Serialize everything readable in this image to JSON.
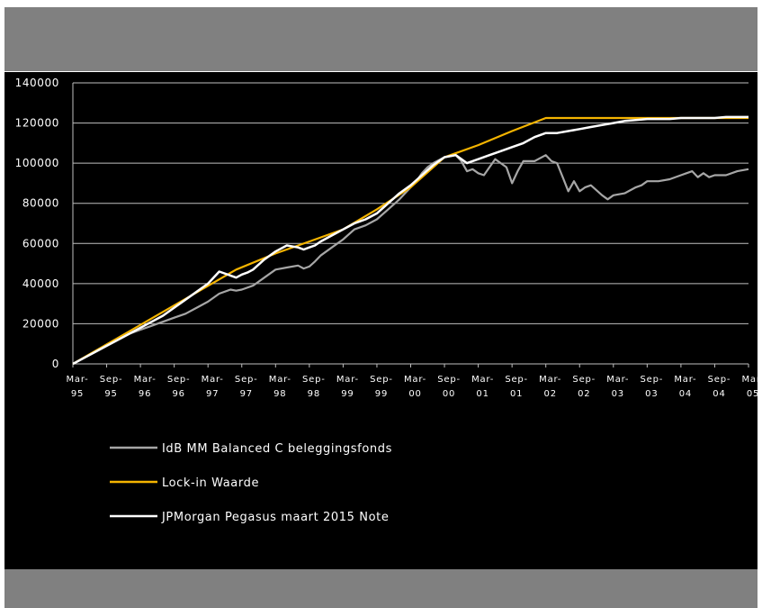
{
  "chart_data": {
    "type": "line",
    "title": "",
    "xlabel": "",
    "ylabel": "",
    "ylim": [
      0,
      140000
    ],
    "y_ticks": [
      "0",
      "20000",
      "40000",
      "60000",
      "80000",
      "100000",
      "120000",
      "140000"
    ],
    "x_ticks": [
      {
        "month": "Mar-",
        "year": "95"
      },
      {
        "month": "Sep-",
        "year": "95"
      },
      {
        "month": "Mar-",
        "year": "96"
      },
      {
        "month": "Sep-",
        "year": "96"
      },
      {
        "month": "Mar-",
        "year": "97"
      },
      {
        "month": "Sep-",
        "year": "97"
      },
      {
        "month": "Mar-",
        "year": "98"
      },
      {
        "month": "Sep-",
        "year": "98"
      },
      {
        "month": "Mar-",
        "year": "99"
      },
      {
        "month": "Sep-",
        "year": "99"
      },
      {
        "month": "Mar-",
        "year": "00"
      },
      {
        "month": "Sep-",
        "year": "00"
      },
      {
        "month": "Mar-",
        "year": "01"
      },
      {
        "month": "Sep-",
        "year": "01"
      },
      {
        "month": "Mar-",
        "year": "02"
      },
      {
        "month": "Sep-",
        "year": "02"
      },
      {
        "month": "Mar-",
        "year": "03"
      },
      {
        "month": "Sep-",
        "year": "03"
      },
      {
        "month": "Mar-",
        "year": "04"
      },
      {
        "month": "Sep-",
        "year": "04"
      },
      {
        "month": "Mar-",
        "year": "05"
      }
    ],
    "grid": "horizontal",
    "legend_position": "bottom-left",
    "series": [
      {
        "name": "IdB MM Balanced C beleggingsfonds",
        "color": "#a6a6a6",
        "x": [
          "1995-03",
          "1995-05",
          "1995-07",
          "1995-09",
          "1995-11",
          "1996-01",
          "1996-03",
          "1996-05",
          "1996-07",
          "1996-09",
          "1996-11",
          "1997-01",
          "1997-03",
          "1997-05",
          "1997-07",
          "1997-08",
          "1997-09",
          "1997-11",
          "1998-01",
          "1998-03",
          "1998-05",
          "1998-07",
          "1998-08",
          "1998-09",
          "1998-10",
          "1998-11",
          "1999-01",
          "1999-03",
          "1999-05",
          "1999-07",
          "1999-09",
          "1999-11",
          "2000-01",
          "2000-03",
          "2000-04",
          "2000-05",
          "2000-06",
          "2000-07",
          "2000-09",
          "2000-11",
          "2000-12",
          "2001-01",
          "2001-02",
          "2001-03",
          "2001-04",
          "2001-05",
          "2001-06",
          "2001-07",
          "2001-08",
          "2001-09",
          "2001-10",
          "2001-11",
          "2002-01",
          "2002-03",
          "2002-04",
          "2002-05",
          "2002-06",
          "2002-07",
          "2002-08",
          "2002-09",
          "2002-10",
          "2002-11",
          "2003-01",
          "2003-02",
          "2003-03",
          "2003-05",
          "2003-07",
          "2003-08",
          "2003-09",
          "2003-11",
          "2004-01",
          "2004-03",
          "2004-05",
          "2004-06",
          "2004-07",
          "2004-08",
          "2004-09",
          "2004-11",
          "2005-01",
          "2005-03"
        ],
        "values": [
          0,
          3000,
          6000,
          9000,
          12000,
          15000,
          17000,
          19000,
          21000,
          23000,
          25000,
          28000,
          31000,
          35000,
          37000,
          36500,
          37000,
          39000,
          43000,
          47000,
          48000,
          49000,
          47500,
          48500,
          51000,
          54000,
          58000,
          62000,
          67000,
          69000,
          72000,
          77000,
          82000,
          88000,
          91000,
          95000,
          98000,
          100000,
          103000,
          104000,
          101000,
          96000,
          97000,
          95000,
          94000,
          98000,
          102000,
          100000,
          98000,
          90000,
          96000,
          101000,
          101000,
          104000,
          101000,
          100000,
          93000,
          86000,
          91000,
          86000,
          88000,
          89000,
          84000,
          82000,
          84000,
          85000,
          88000,
          89000,
          91000,
          91000,
          92000,
          94000,
          96000,
          93000,
          95000,
          93000,
          94000,
          94000,
          96000,
          97000
        ]
      },
      {
        "name": "Lock-in Waarde",
        "color": "#f4b400",
        "x": [
          "1995-03",
          "1997-08",
          "1998-03",
          "1998-09",
          "1999-03",
          "1999-09",
          "2000-03",
          "2000-09",
          "2001-03",
          "2001-09",
          "2002-03",
          "2005-03"
        ],
        "values": [
          0,
          47000,
          55000,
          61000,
          67000,
          77000,
          88000,
          103000,
          109000,
          116000,
          122500,
          122500
        ]
      },
      {
        "name": "JPMorgan Pegasus maart 2015 Note",
        "color": "#ffffff",
        "x": [
          "1995-03",
          "1995-05",
          "1995-07",
          "1995-09",
          "1995-11",
          "1996-01",
          "1996-03",
          "1996-05",
          "1996-07",
          "1996-09",
          "1996-11",
          "1997-01",
          "1997-03",
          "1997-05",
          "1997-07",
          "1997-08",
          "1997-09",
          "1997-10",
          "1997-11",
          "1998-01",
          "1998-03",
          "1998-05",
          "1998-07",
          "1998-08",
          "1998-09",
          "1998-10",
          "1998-11",
          "1999-01",
          "1999-03",
          "1999-05",
          "1999-07",
          "1999-09",
          "1999-11",
          "2000-01",
          "2000-03",
          "2000-05",
          "2000-07",
          "2000-09",
          "2000-11",
          "2001-01",
          "2001-03",
          "2001-05",
          "2001-07",
          "2001-09",
          "2001-11",
          "2002-01",
          "2002-03",
          "2002-05",
          "2002-07",
          "2002-09",
          "2002-11",
          "2003-01",
          "2003-03",
          "2003-05",
          "2003-07",
          "2003-09",
          "2003-11",
          "2004-01",
          "2004-03",
          "2004-05",
          "2004-07",
          "2004-09",
          "2004-11",
          "2005-01",
          "2005-03"
        ],
        "values": [
          0,
          3000,
          6000,
          9000,
          12000,
          15000,
          18000,
          21000,
          24000,
          28000,
          32000,
          36000,
          40000,
          46000,
          44000,
          43000,
          44500,
          45500,
          47000,
          52000,
          56000,
          59000,
          58000,
          57000,
          58000,
          59000,
          61000,
          64000,
          67000,
          70000,
          72000,
          75000,
          80000,
          85000,
          89000,
          94000,
          99000,
          103000,
          104000,
          100000,
          102000,
          104000,
          106000,
          108000,
          110000,
          113000,
          115000,
          115000,
          116000,
          117000,
          118000,
          119000,
          120000,
          121000,
          121500,
          122000,
          122000,
          122000,
          122500,
          122500,
          122500,
          122500,
          123000,
          123000,
          123000
        ]
      }
    ]
  }
}
